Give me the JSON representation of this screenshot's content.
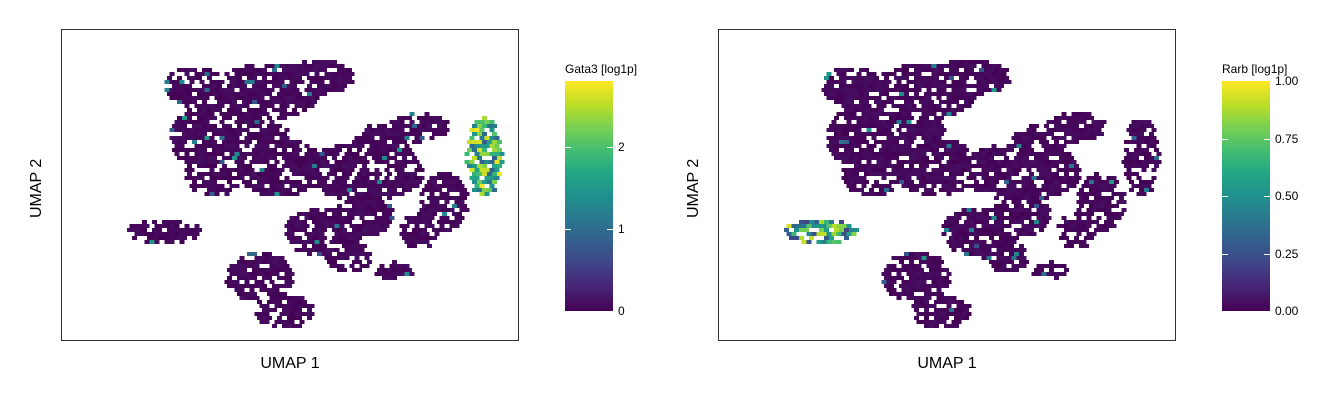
{
  "chart_data": [
    {
      "type": "scatter",
      "subtype": "umap-hexbin",
      "xlabel": "UMAP 1",
      "ylabel": "UMAP 2",
      "colorbar": {
        "title": "Gata3 [log1p]",
        "colormap": "viridis",
        "range": [
          0,
          2.8
        ],
        "ticks": [
          0,
          1,
          2
        ],
        "tick_labels": [
          "0",
          "1",
          "2"
        ]
      },
      "high_expression_region": "right-edge cluster"
    },
    {
      "type": "scatter",
      "subtype": "umap-hexbin",
      "xlabel": "UMAP 1",
      "ylabel": "UMAP 2",
      "colorbar": {
        "title": "Rarb [log1p]",
        "colormap": "viridis",
        "range": [
          0,
          1.0
        ],
        "ticks": [
          0,
          0.25,
          0.5,
          0.75,
          1.0
        ],
        "tick_labels": [
          "0.00",
          "0.25",
          "0.50",
          "0.75",
          "1.00"
        ]
      },
      "high_expression_region": "left isolated cluster"
    }
  ],
  "colors": {
    "viridis_low": "#440154",
    "viridis_mid": "#21918c",
    "viridis_high": "#fde725"
  }
}
